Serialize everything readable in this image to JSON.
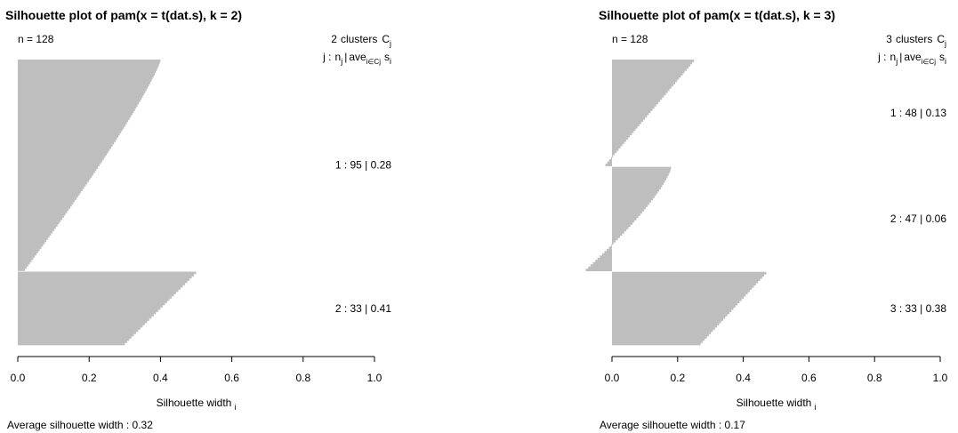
{
  "chart_data": [
    {
      "type": "silhouette",
      "title": "Silhouette plot of pam(x = t(dat.s), k = 2)",
      "n_label": "n = 128",
      "legend_header": {
        "count": "2",
        "word": "clusters",
        "C": "C",
        "sub": "j"
      },
      "legend_line": {
        "j": "j :",
        "n": "n",
        "nsub": "j",
        "bar": "|",
        "ave": "ave",
        "avesub": "i∈Cj",
        "s": "s",
        "ssub": "i"
      },
      "xlabel": "Silhouette width",
      "xlabel_sub": "i",
      "xlim": [
        0,
        1
      ],
      "xticks": [
        "0.0",
        "0.2",
        "0.4",
        "0.6",
        "0.8",
        "1.0"
      ],
      "xtick_values": [
        0.0,
        0.2,
        0.4,
        0.6,
        0.8,
        1.0
      ],
      "footer": "Average silhouette width :  0.32",
      "clusters": [
        {
          "label": "1 :   95  |  0.28",
          "n": 95,
          "avg": 0.28,
          "max": 0.4,
          "min": 0.02,
          "shape": 1.15
        },
        {
          "label": "2 :   33  |  0.41",
          "n": 33,
          "avg": 0.41,
          "max": 0.5,
          "min": 0.3,
          "shape": 1.0
        }
      ]
    },
    {
      "type": "silhouette",
      "title": "Silhouette plot of pam(x = t(dat.s), k = 3)",
      "n_label": "n = 128",
      "legend_header": {
        "count": "3",
        "word": "clusters",
        "C": "C",
        "sub": "j"
      },
      "legend_line": {
        "j": "j :",
        "n": "n",
        "nsub": "j",
        "bar": "|",
        "ave": "ave",
        "avesub": "i∈Cj",
        "s": "s",
        "ssub": "i"
      },
      "xlabel": "Silhouette width",
      "xlabel_sub": "i",
      "xlim": [
        0,
        1
      ],
      "xticks": [
        "0.0",
        "0.2",
        "0.4",
        "0.6",
        "0.8",
        "1.0"
      ],
      "xtick_values": [
        0.0,
        0.2,
        0.4,
        0.6,
        0.8,
        1.0
      ],
      "footer": "Average silhouette width :  0.17",
      "clusters": [
        {
          "label": "1 :   48  |  0.13",
          "n": 48,
          "avg": 0.13,
          "max": 0.25,
          "min": -0.02,
          "shape": 1.0
        },
        {
          "label": "2 :   47  |  0.06",
          "n": 47,
          "avg": 0.06,
          "max": 0.18,
          "min": -0.08,
          "shape": 1.3
        },
        {
          "label": "3 :   33  |  0.38",
          "n": 33,
          "avg": 0.38,
          "max": 0.47,
          "min": 0.27,
          "shape": 1.0
        }
      ]
    }
  ]
}
